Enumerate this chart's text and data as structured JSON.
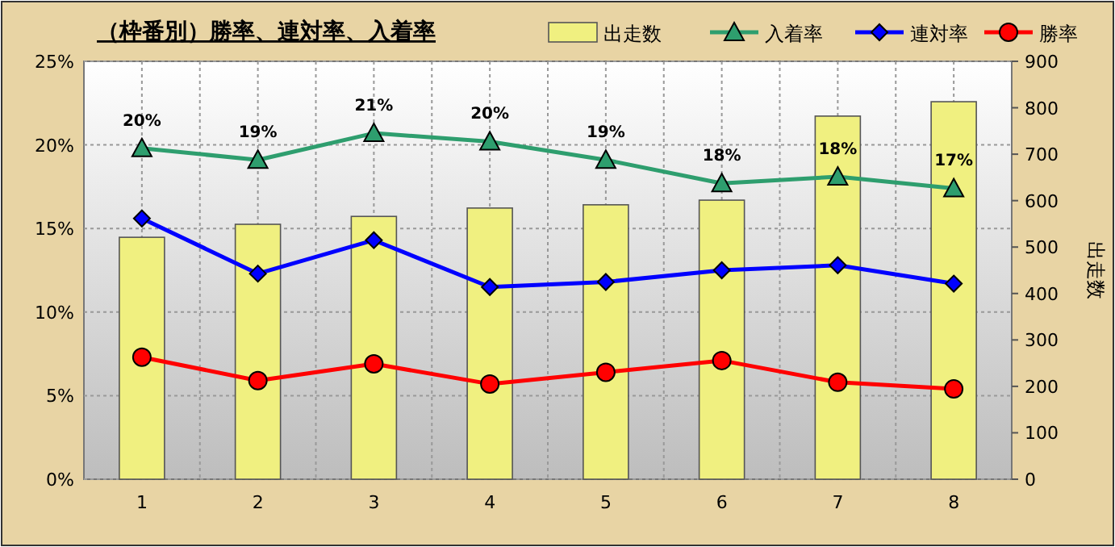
{
  "chart_data": {
    "type": "bar",
    "title": "（枠番別）勝率、連対率、入着率",
    "y2label": "出走数",
    "categories": [
      "1",
      "2",
      "3",
      "4",
      "5",
      "6",
      "7",
      "8"
    ],
    "ylim": [
      0,
      25
    ],
    "yticks": [
      {
        "value": 0,
        "label": "0%"
      },
      {
        "value": 5,
        "label": "5%"
      },
      {
        "value": 10,
        "label": "10%"
      },
      {
        "value": 15,
        "label": "15%"
      },
      {
        "value": 20,
        "label": "20%"
      },
      {
        "value": 25,
        "label": "25%"
      }
    ],
    "y2lim": [
      0,
      900
    ],
    "y2ticks": [
      0,
      100,
      200,
      300,
      400,
      500,
      600,
      700,
      800,
      900
    ],
    "grid": true,
    "legend": "top right",
    "series": [
      {
        "name": "出走数",
        "axis": "y2",
        "color": "#f0f080",
        "values": [
          521,
          549,
          566,
          584,
          591,
          601,
          782,
          813
        ]
      },
      {
        "name": "入着率",
        "type": "line",
        "color": "#2e9e6e",
        "marker": "triangle",
        "values": [
          19.8,
          19.1,
          20.7,
          20.2,
          19.1,
          17.7,
          18.1,
          17.4
        ],
        "value_labels": [
          "20%",
          "19%",
          "21%",
          "20%",
          "19%",
          "18%",
          "18%",
          "17%"
        ]
      },
      {
        "name": "連対率",
        "type": "line",
        "color": "#0000ff",
        "marker": "diamond",
        "values": [
          15.6,
          12.3,
          14.3,
          11.5,
          11.8,
          12.5,
          12.8,
          11.7
        ]
      },
      {
        "name": "勝率",
        "type": "line",
        "color": "#ff0000",
        "marker": "circle",
        "values": [
          7.3,
          5.9,
          6.9,
          5.7,
          6.4,
          7.1,
          5.8,
          5.4
        ]
      }
    ]
  }
}
